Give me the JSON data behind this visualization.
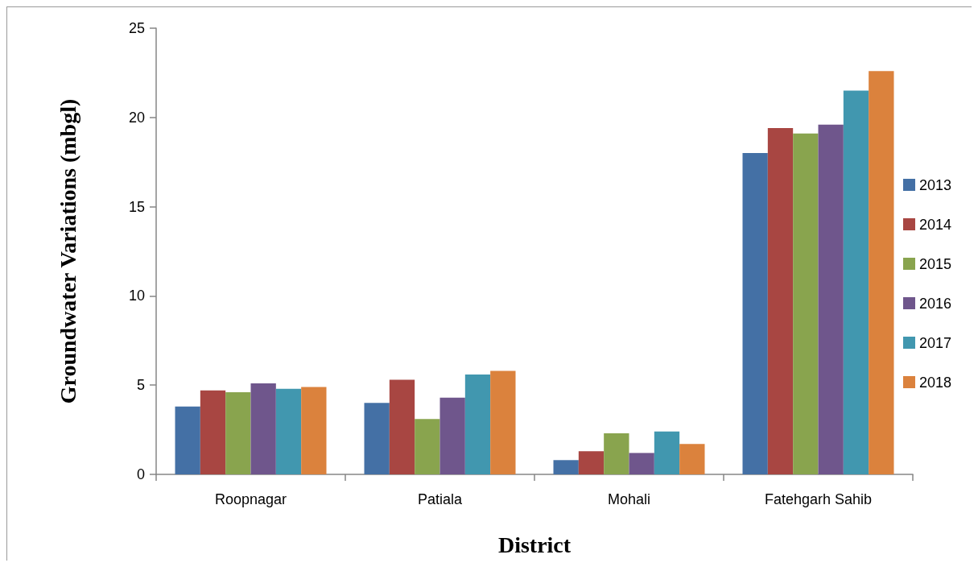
{
  "chart_data": {
    "type": "bar",
    "xlabel": "District",
    "ylabel": "Groundwater Variations (mbgl)",
    "categories": [
      "Roopnagar",
      "Patiala",
      "Mohali",
      "Fatehgarh Sahib"
    ],
    "series": [
      {
        "name": "2013",
        "color": "#4470a5",
        "values": [
          3.8,
          4.0,
          0.8,
          18.0
        ]
      },
      {
        "name": "2014",
        "color": "#a84642",
        "values": [
          4.7,
          5.3,
          1.3,
          19.4
        ]
      },
      {
        "name": "2015",
        "color": "#89a44e",
        "values": [
          4.6,
          3.1,
          2.3,
          19.1
        ]
      },
      {
        "name": "2016",
        "color": "#6f568c",
        "values": [
          5.1,
          4.3,
          1.2,
          19.6
        ]
      },
      {
        "name": "2017",
        "color": "#4197af",
        "values": [
          4.8,
          5.6,
          2.4,
          21.5
        ]
      },
      {
        "name": "2018",
        "color": "#db823d",
        "values": [
          4.9,
          5.8,
          1.7,
          22.6
        ]
      }
    ],
    "ylim": [
      0,
      25
    ],
    "yticks": [
      0,
      5,
      10,
      15,
      20,
      25
    ],
    "grid": false,
    "legend": "right"
  }
}
